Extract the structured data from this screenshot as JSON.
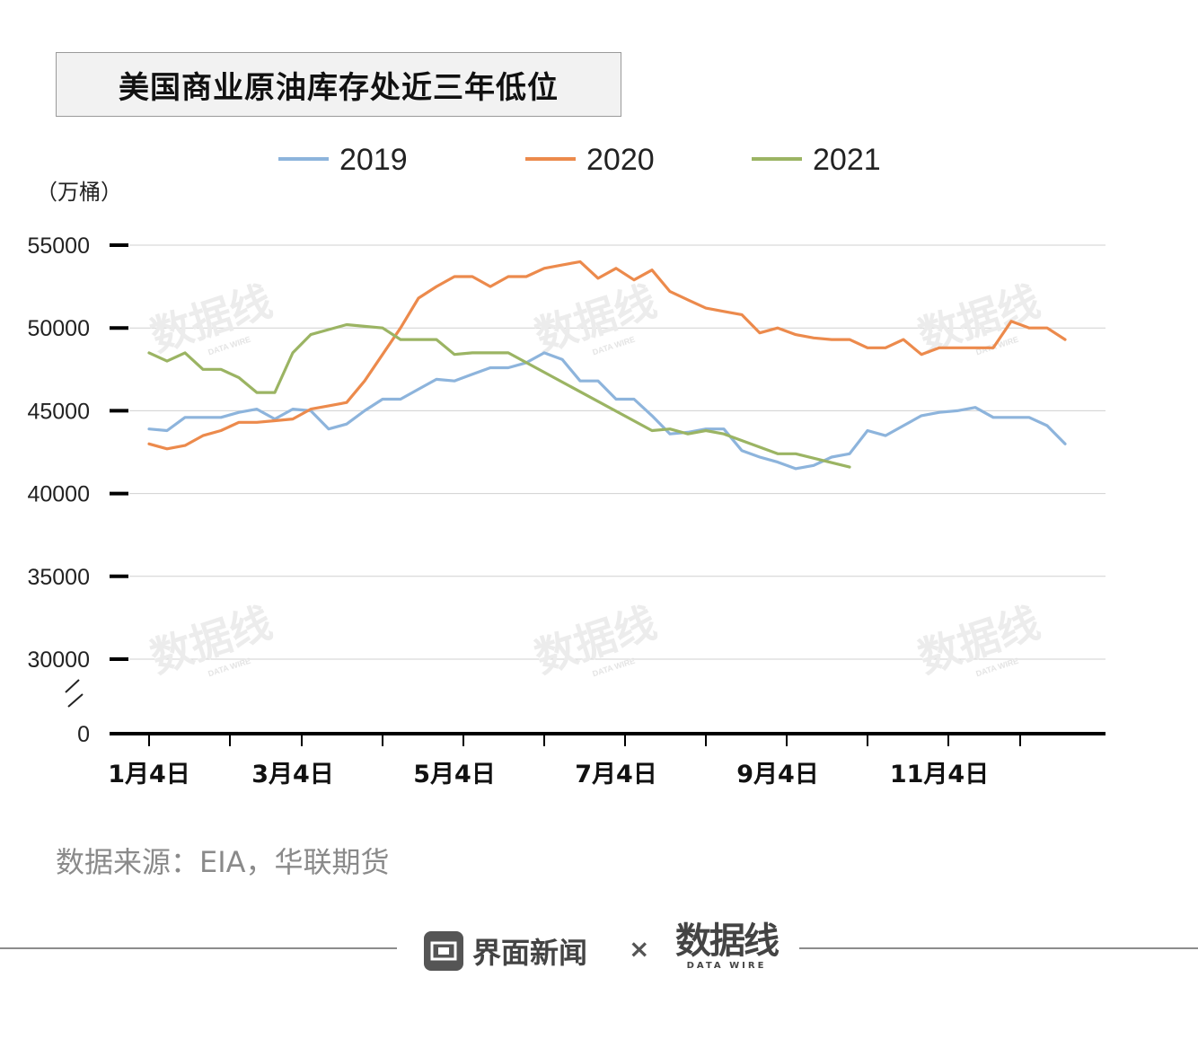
{
  "title": "美国商业原油库存处近三年低位",
  "source": "数据来源：EIA，华联期货",
  "footer": {
    "brand_name": "界面新闻",
    "separator": "×",
    "wire_cn": "数据线",
    "wire_en": "DATA WIRE"
  },
  "watermark": {
    "cn": "数据线",
    "en": "DATA WIRE"
  },
  "chart_data": {
    "type": "line",
    "title": "美国商业原油库存处近三年低位",
    "ylabel": "（万桶）",
    "xlabel": "",
    "y_axis_break": true,
    "y_ticks": [
      0,
      30000,
      35000,
      40000,
      45000,
      50000,
      55000
    ],
    "y_tick_labels": [
      "0",
      "30000",
      "35000",
      "40000",
      "45000",
      "50000",
      "55000"
    ],
    "x_week_count": 52,
    "x_tick_labels": [
      {
        "week": 0,
        "label": "1月4日"
      },
      {
        "week": 8,
        "label": "3月4日"
      },
      {
        "week": 17,
        "label": "5月4日"
      },
      {
        "week": 26,
        "label": "7月4日"
      },
      {
        "week": 35,
        "label": "9月4日"
      },
      {
        "week": 44,
        "label": "11月4日"
      }
    ],
    "x_minor_ticks": [
      0,
      4.5,
      8.5,
      13,
      17.5,
      22,
      26.5,
      31,
      35.5,
      40,
      44.5,
      48.5
    ],
    "legend_position": "top",
    "colors": {
      "2019": "#8db4dc",
      "2020": "#ec8a4c",
      "2021": "#9bb463",
      "axis": "#000000",
      "grid": "#d0d0d0"
    },
    "series": [
      {
        "name": "2019",
        "values": [
          43900,
          43800,
          44600,
          44600,
          44600,
          44900,
          45100,
          44500,
          45100,
          45000,
          43900,
          44200,
          45000,
          45700,
          45700,
          46300,
          46900,
          46800,
          47200,
          47600,
          47600,
          47900,
          48500,
          48100,
          46800,
          46800,
          45700,
          45700,
          44700,
          43600,
          43700,
          43900,
          43900,
          42600,
          42200,
          41900,
          41500,
          41700,
          42200,
          42400,
          43800,
          43500,
          44100,
          44700,
          44900,
          45000,
          45200,
          44600,
          44600,
          44600,
          44100,
          43000
        ]
      },
      {
        "name": "2020",
        "values": [
          43000,
          42700,
          42900,
          43500,
          43800,
          44300,
          44300,
          44400,
          44500,
          45100,
          45300,
          45500,
          46800,
          48400,
          50000,
          51800,
          52500,
          53100,
          53100,
          52500,
          53100,
          53100,
          53600,
          53800,
          54000,
          53000,
          53600,
          52900,
          53500,
          52200,
          51700,
          51200,
          51000,
          50800,
          49700,
          50000,
          49600,
          49400,
          49300,
          49300,
          48800,
          48800,
          49300,
          48400,
          48800,
          48800,
          48800,
          48800,
          50400,
          50000,
          50000,
          49300
        ]
      },
      {
        "name": "2021",
        "values": [
          48500,
          48000,
          48500,
          47500,
          47500,
          47000,
          46100,
          46100,
          48500,
          49600,
          49900,
          50200,
          50100,
          50000,
          49300,
          49300,
          49300,
          48400,
          48500,
          48500,
          48500,
          null,
          null,
          null,
          null,
          null,
          null,
          null,
          43800,
          43900,
          43600,
          43800,
          43600,
          null,
          null,
          42400,
          42400,
          null,
          null,
          41600
        ]
      }
    ]
  }
}
